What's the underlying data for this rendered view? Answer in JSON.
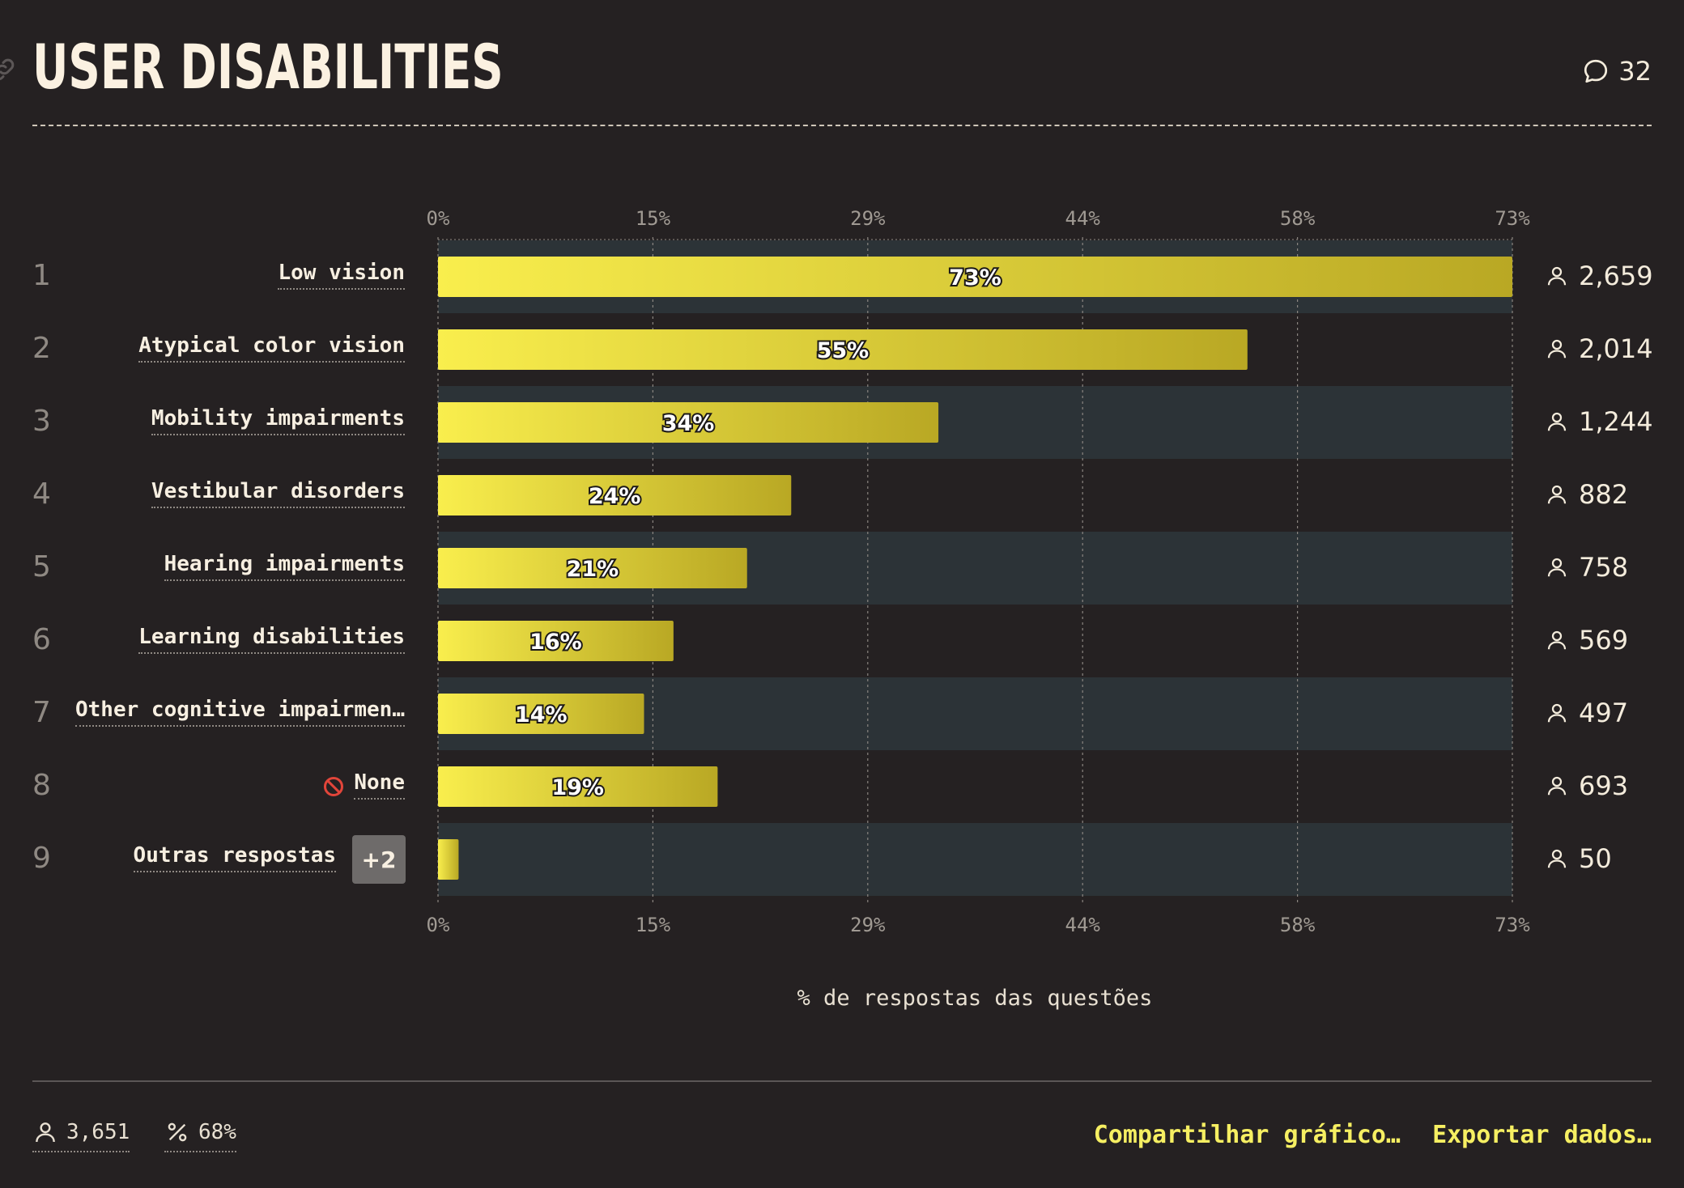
{
  "header": {
    "title": "USER DISABILITIES",
    "comment_count": "32",
    "icons": [
      "link-icon",
      "comment-icon"
    ]
  },
  "chart_data": {
    "type": "bar",
    "orientation": "horizontal",
    "xlabel": "% de respostas das questões",
    "xlim": [
      0,
      73
    ],
    "x_ticks": [
      "0%",
      "15%",
      "29%",
      "44%",
      "58%",
      "73%"
    ],
    "grid": true,
    "rows": [
      {
        "rank": "1",
        "label": "Low vision",
        "value": 73,
        "value_label": "73%",
        "count": "2,659"
      },
      {
        "rank": "2",
        "label": "Atypical color vision",
        "value": 55,
        "value_label": "55%",
        "count": "2,014"
      },
      {
        "rank": "3",
        "label": "Mobility impairments",
        "value": 34,
        "value_label": "34%",
        "count": "1,244"
      },
      {
        "rank": "4",
        "label": "Vestibular disorders",
        "value": 24,
        "value_label": "24%",
        "count": "882"
      },
      {
        "rank": "5",
        "label": "Hearing impairments",
        "value": 21,
        "value_label": "21%",
        "count": "758"
      },
      {
        "rank": "6",
        "label": "Learning disabilities",
        "value": 16,
        "value_label": "16%",
        "count": "569"
      },
      {
        "rank": "7",
        "label": "Other cognitive impairmen…",
        "value": 14,
        "value_label": "14%",
        "count": "497"
      },
      {
        "rank": "8",
        "label": "None",
        "value": 19,
        "value_label": "19%",
        "count": "693",
        "icon": "no-entry-icon"
      },
      {
        "rank": "9",
        "label": "Outras respostas",
        "value": 1.4,
        "value_label": "",
        "count": "50",
        "badge": "+2"
      }
    ],
    "colors": {
      "bar_start": "#f9ee4d",
      "bar_end": "#b9a824",
      "row_stripe": "#2c3337",
      "background": "#252122"
    }
  },
  "footer": {
    "respondents": "3,651",
    "percent": "68%",
    "share_link": "Compartilhar gráfico…",
    "export_link": "Exportar dados…",
    "link_color": "#f6ef62"
  }
}
